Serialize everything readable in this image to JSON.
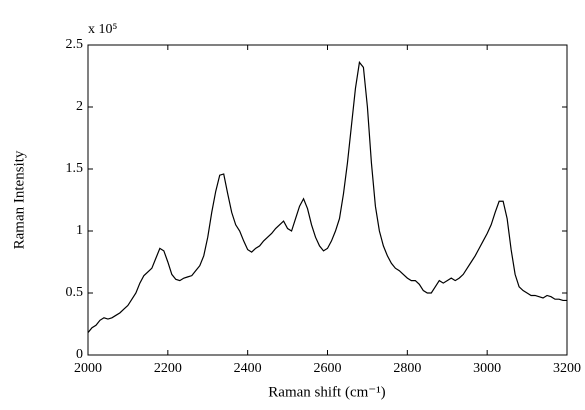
{
  "chart_data": {
    "type": "line",
    "xlabel": "Raman shift (cm⁻¹)",
    "ylabel": "Raman Intensity",
    "y_multiplier": "x 10⁵",
    "x": [
      2000,
      2010,
      2020,
      2030,
      2040,
      2050,
      2060,
      2070,
      2080,
      2090,
      2100,
      2110,
      2120,
      2130,
      2140,
      2150,
      2160,
      2170,
      2180,
      2190,
      2200,
      2210,
      2220,
      2230,
      2240,
      2250,
      2260,
      2270,
      2280,
      2290,
      2300,
      2310,
      2320,
      2330,
      2340,
      2350,
      2360,
      2370,
      2380,
      2390,
      2400,
      2410,
      2420,
      2430,
      2440,
      2450,
      2460,
      2470,
      2480,
      2490,
      2500,
      2510,
      2520,
      2530,
      2540,
      2550,
      2560,
      2570,
      2580,
      2590,
      2600,
      2610,
      2620,
      2630,
      2640,
      2650,
      2660,
      2670,
      2680,
      2690,
      2700,
      2710,
      2720,
      2730,
      2740,
      2750,
      2760,
      2770,
      2780,
      2790,
      2800,
      2810,
      2820,
      2830,
      2840,
      2850,
      2860,
      2870,
      2880,
      2890,
      2900,
      2910,
      2920,
      2930,
      2940,
      2950,
      2960,
      2970,
      2980,
      2990,
      3000,
      3010,
      3020,
      3030,
      3040,
      3050,
      3060,
      3070,
      3080,
      3090,
      3100,
      3110,
      3120,
      3130,
      3140,
      3150,
      3160,
      3170,
      3180,
      3190,
      3200
    ],
    "series": [
      {
        "color": "#000000",
        "values": [
          0.18,
          0.22,
          0.24,
          0.28,
          0.3,
          0.29,
          0.3,
          0.32,
          0.34,
          0.37,
          0.4,
          0.45,
          0.5,
          0.58,
          0.64,
          0.67,
          0.7,
          0.78,
          0.86,
          0.84,
          0.75,
          0.65,
          0.61,
          0.6,
          0.62,
          0.63,
          0.64,
          0.68,
          0.72,
          0.8,
          0.95,
          1.15,
          1.32,
          1.45,
          1.46,
          1.3,
          1.15,
          1.05,
          1.0,
          0.92,
          0.85,
          0.83,
          0.86,
          0.88,
          0.92,
          0.95,
          0.98,
          1.02,
          1.05,
          1.08,
          1.02,
          1.0,
          1.1,
          1.2,
          1.26,
          1.18,
          1.05,
          0.95,
          0.88,
          0.84,
          0.86,
          0.92,
          1.0,
          1.1,
          1.3,
          1.55,
          1.85,
          2.15,
          2.36,
          2.32,
          2.0,
          1.55,
          1.2,
          1.0,
          0.88,
          0.8,
          0.74,
          0.7,
          0.68,
          0.65,
          0.62,
          0.6,
          0.6,
          0.57,
          0.52,
          0.5,
          0.5,
          0.55,
          0.6,
          0.58,
          0.6,
          0.62,
          0.6,
          0.62,
          0.65,
          0.7,
          0.75,
          0.8,
          0.86,
          0.92,
          0.98,
          1.05,
          1.15,
          1.24,
          1.24,
          1.1,
          0.85,
          0.65,
          0.55,
          0.52,
          0.5,
          0.48,
          0.48,
          0.47,
          0.46,
          0.48,
          0.47,
          0.45,
          0.45,
          0.44,
          0.44
        ]
      }
    ],
    "xlim": [
      2000,
      3200
    ],
    "xticks": [
      2000,
      2200,
      2400,
      2600,
      2800,
      3000,
      3200
    ],
    "ylim": [
      0,
      2.5
    ],
    "yticks": [
      0,
      0.5,
      1,
      1.5,
      2,
      2.5
    ],
    "grid": false
  }
}
